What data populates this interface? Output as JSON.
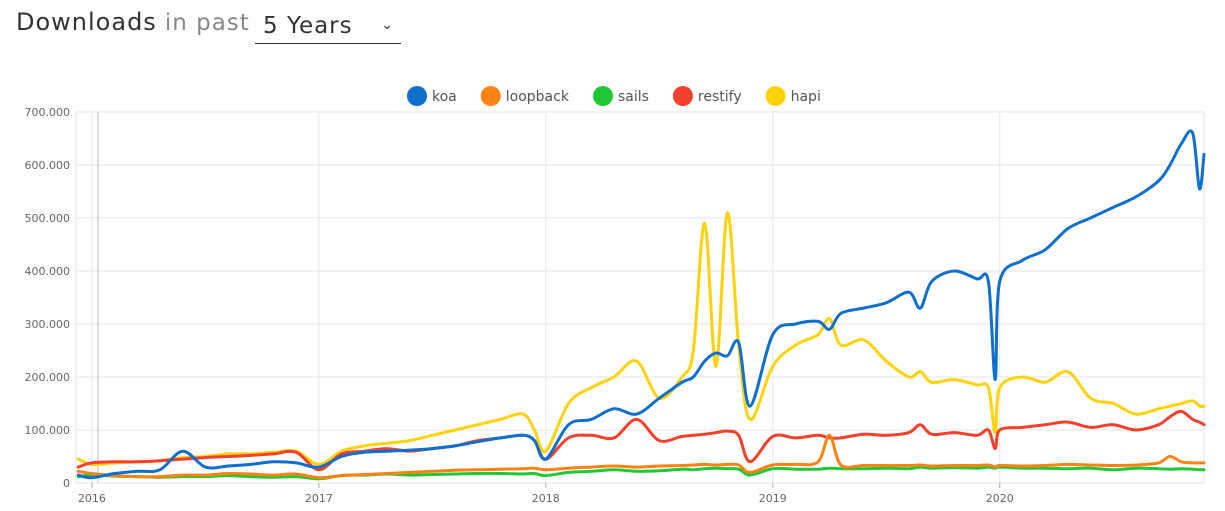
{
  "header": {
    "title": "Downloads",
    "subtitle": "in past",
    "period": "5 Years"
  },
  "colors": {
    "koa": "#0f6fce",
    "loopback": "#ff8213",
    "sails": "#22c736",
    "restify": "#f4402c",
    "hapi": "#ffd20a"
  },
  "chart_data": {
    "type": "line",
    "title": "",
    "xlabel": "",
    "ylabel": "",
    "ylim": [
      0,
      700000
    ],
    "y_ticks": [
      0,
      100000,
      200000,
      300000,
      400000,
      500000,
      600000,
      700000
    ],
    "y_tick_labels": [
      "0",
      "100.000",
      "200.000",
      "300.000",
      "400.000",
      "500.000",
      "600.000",
      "700.000"
    ],
    "x_ticks": [
      "2016",
      "2017",
      "2018",
      "2019",
      "2020"
    ],
    "xlim": [
      2015.93,
      2020.9
    ],
    "grid": true,
    "legend": "top-center",
    "x": [
      2015.94,
      2016.0,
      2016.1,
      2016.2,
      2016.3,
      2016.4,
      2016.5,
      2016.6,
      2016.7,
      2016.8,
      2016.9,
      2017.0,
      2017.1,
      2017.2,
      2017.3,
      2017.4,
      2017.5,
      2017.6,
      2017.7,
      2017.8,
      2017.9,
      2017.95,
      2018.0,
      2018.1,
      2018.2,
      2018.3,
      2018.4,
      2018.5,
      2018.6,
      2018.65,
      2018.7,
      2018.75,
      2018.8,
      2018.85,
      2018.9,
      2019.0,
      2019.1,
      2019.2,
      2019.25,
      2019.3,
      2019.4,
      2019.5,
      2019.6,
      2019.65,
      2019.7,
      2019.8,
      2019.9,
      2019.95,
      2019.98,
      2020.0,
      2020.1,
      2020.2,
      2020.3,
      2020.4,
      2020.5,
      2020.6,
      2020.7,
      2020.75,
      2020.8,
      2020.85,
      2020.88,
      2020.9
    ],
    "series": [
      {
        "name": "koa",
        "values": [
          15000,
          10000,
          18000,
          22000,
          25000,
          60000,
          30000,
          32000,
          35000,
          40000,
          38000,
          30000,
          50000,
          58000,
          60000,
          62000,
          65000,
          70000,
          78000,
          85000,
          90000,
          80000,
          45000,
          110000,
          120000,
          140000,
          130000,
          160000,
          190000,
          200000,
          230000,
          245000,
          240000,
          265000,
          145000,
          280000,
          300000,
          305000,
          290000,
          320000,
          330000,
          340000,
          360000,
          330000,
          380000,
          400000,
          385000,
          380000,
          195000,
          380000,
          420000,
          440000,
          480000,
          500000,
          520000,
          540000,
          570000,
          600000,
          640000,
          660000,
          555000,
          620000
        ]
      },
      {
        "name": "loopback",
        "values": [
          22000,
          18000,
          14000,
          12000,
          12000,
          15000,
          15000,
          18000,
          17000,
          15000,
          17000,
          10000,
          14000,
          16000,
          18000,
          20000,
          22000,
          24000,
          25000,
          26000,
          27000,
          28000,
          25000,
          28000,
          30000,
          32000,
          30000,
          32000,
          33000,
          34000,
          35000,
          34000,
          35000,
          34000,
          20000,
          34000,
          35000,
          40000,
          90000,
          34000,
          33000,
          33000,
          33000,
          34000,
          32000,
          33000,
          33000,
          34000,
          30000,
          33000,
          32000,
          33000,
          35000,
          34000,
          33000,
          34000,
          38000,
          50000,
          40000,
          38000,
          38000,
          38000
        ]
      },
      {
        "name": "sails",
        "values": [
          12000,
          15000,
          13000,
          12000,
          11000,
          12000,
          12000,
          14000,
          12000,
          11000,
          12000,
          8000,
          14000,
          15000,
          17000,
          15000,
          16000,
          17000,
          18000,
          18000,
          17000,
          18000,
          14000,
          20000,
          22000,
          25000,
          22000,
          23000,
          26000,
          25000,
          27000,
          28000,
          27000,
          26000,
          15000,
          27000,
          26000,
          26000,
          28000,
          27000,
          27000,
          28000,
          27000,
          30000,
          28000,
          29000,
          28000,
          30000,
          28000,
          30000,
          28000,
          28000,
          27000,
          28000,
          25000,
          28000,
          27000,
          26000,
          27000,
          26000,
          25000,
          25000
        ]
      },
      {
        "name": "restify",
        "values": [
          30000,
          38000,
          40000,
          40000,
          42000,
          45000,
          48000,
          50000,
          52000,
          55000,
          58000,
          25000,
          55000,
          60000,
          65000,
          60000,
          65000,
          70000,
          80000,
          85000,
          90000,
          80000,
          45000,
          85000,
          90000,
          85000,
          120000,
          80000,
          88000,
          90000,
          92000,
          95000,
          98000,
          90000,
          40000,
          88000,
          85000,
          90000,
          85000,
          85000,
          92000,
          90000,
          95000,
          110000,
          92000,
          95000,
          90000,
          100000,
          65000,
          100000,
          105000,
          110000,
          115000,
          105000,
          110000,
          100000,
          110000,
          125000,
          135000,
          120000,
          115000,
          110000
        ]
      },
      {
        "name": "hapi",
        "values": [
          45000,
          35000,
          38000,
          40000,
          42000,
          48000,
          50000,
          55000,
          55000,
          58000,
          60000,
          35000,
          60000,
          70000,
          75000,
          80000,
          90000,
          100000,
          110000,
          120000,
          130000,
          100000,
          60000,
          150000,
          180000,
          200000,
          230000,
          160000,
          200000,
          250000,
          490000,
          220000,
          510000,
          260000,
          120000,
          220000,
          260000,
          280000,
          310000,
          260000,
          270000,
          230000,
          200000,
          210000,
          190000,
          195000,
          185000,
          180000,
          95000,
          180000,
          200000,
          190000,
          210000,
          160000,
          150000,
          130000,
          140000,
          145000,
          150000,
          155000,
          145000,
          145000
        ]
      }
    ]
  }
}
